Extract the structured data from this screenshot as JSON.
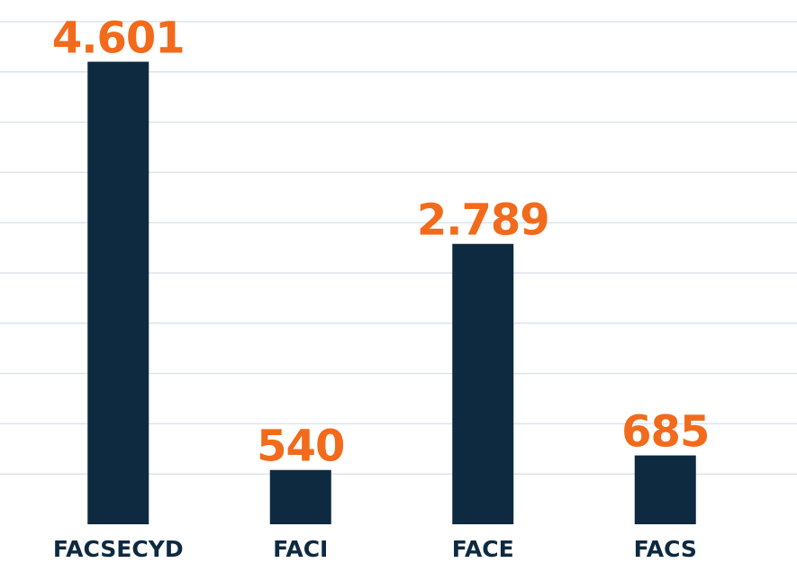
{
  "chart_data": {
    "type": "bar",
    "categories": [
      "FACSECYD",
      "FACI",
      "FACE",
      "FACS"
    ],
    "values": [
      4601,
      540,
      2789,
      685
    ],
    "value_labels": [
      "4.601",
      "540",
      "2.789",
      "685"
    ],
    "color": "#0d2a40",
    "label_color": "#f26a1b",
    "ylim": [
      0,
      5000
    ],
    "yticks": [
      500,
      1000,
      1500,
      2000,
      2500,
      3000,
      3500,
      4000,
      4500,
      5000
    ],
    "grid": true
  }
}
